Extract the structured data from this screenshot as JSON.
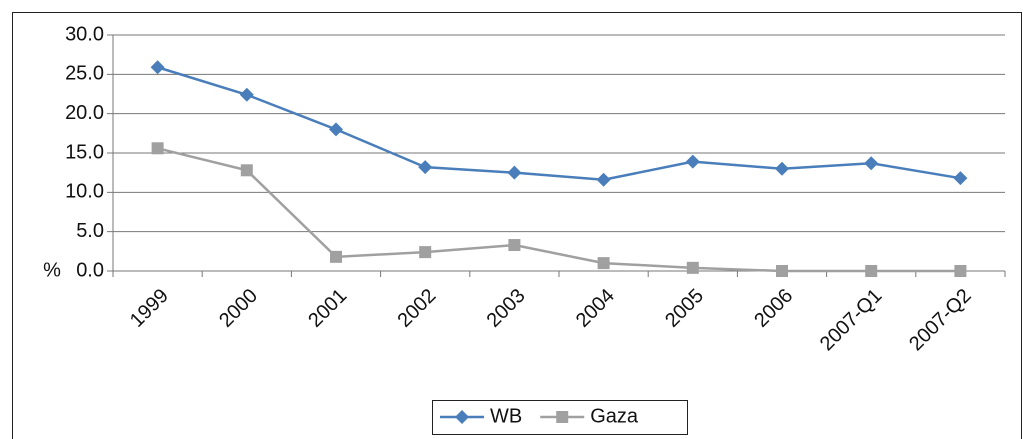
{
  "chart_data": {
    "type": "line",
    "y_label": "%",
    "categories": [
      "1999",
      "2000",
      "2001",
      "2002",
      "2003",
      "2004",
      "2005",
      "2006",
      "2007-Q1",
      "2007-Q2"
    ],
    "series": [
      {
        "name": "WB",
        "color": "#4a7ebb",
        "marker": "diamond",
        "values": [
          25.9,
          22.4,
          18.0,
          13.2,
          12.5,
          11.6,
          13.9,
          13.0,
          13.7,
          11.8
        ]
      },
      {
        "name": "Gaza",
        "color": "#a0a0a0",
        "marker": "square",
        "values": [
          15.6,
          12.8,
          1.8,
          2.4,
          3.3,
          1.0,
          0.4,
          0,
          0,
          0
        ]
      }
    ],
    "ylim": [
      0,
      30
    ],
    "yticks": [
      {
        "value": 0,
        "label": "0.0"
      },
      {
        "value": 5,
        "label": "5.0"
      },
      {
        "value": 10,
        "label": "10.0"
      },
      {
        "value": 15,
        "label": "15.0"
      },
      {
        "value": 20,
        "label": "20.0"
      },
      {
        "value": 25,
        "label": "25.0"
      },
      {
        "value": 30,
        "label": "30.0"
      }
    ],
    "grid": true,
    "legend": "bottom"
  }
}
